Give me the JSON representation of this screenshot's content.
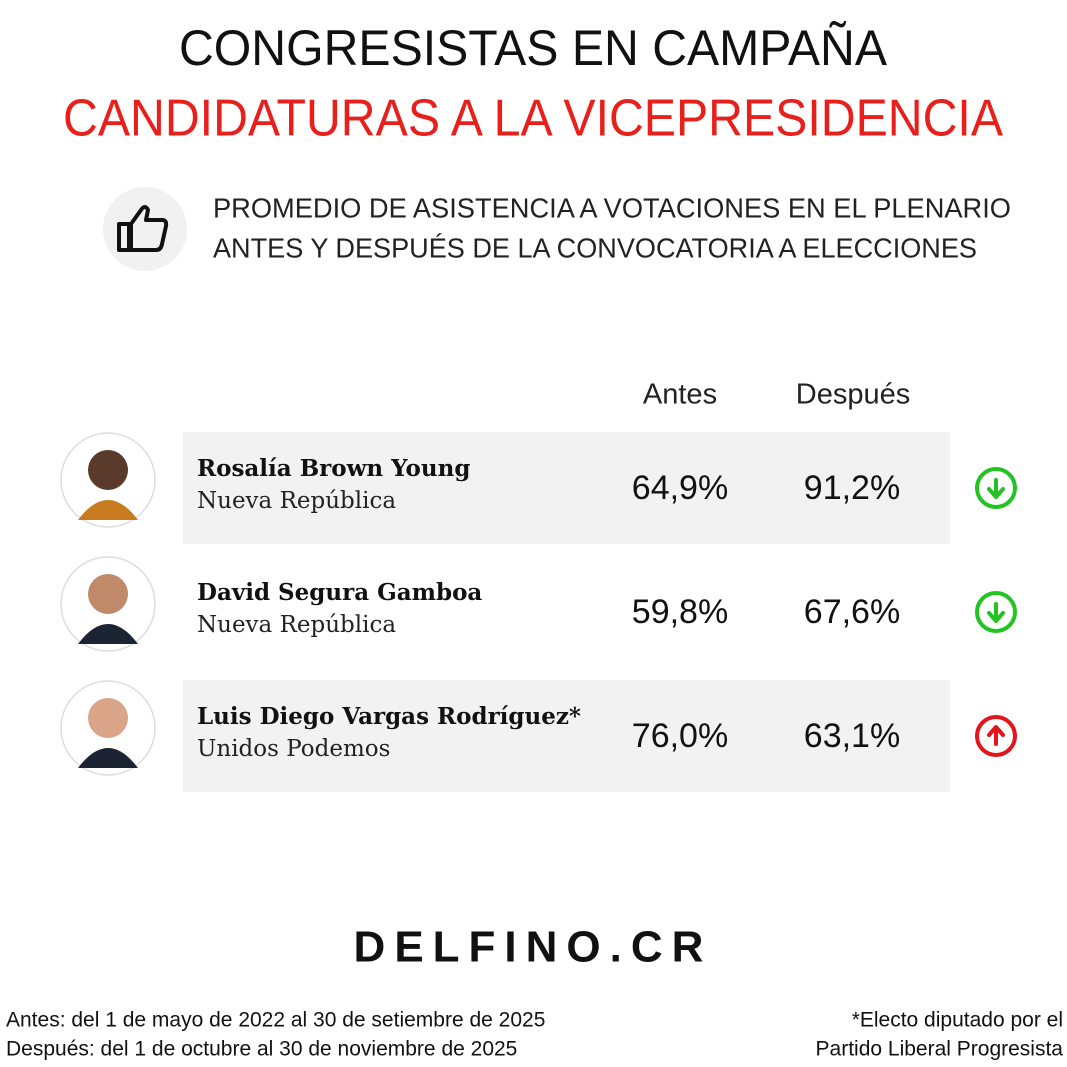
{
  "header": {
    "title": "CONGRESISTAS EN CAMPAÑA",
    "subtitle": "CANDIDATURAS A LA VICEPRESIDENCIA",
    "description": [
      "PROMEDIO DE ASISTENCIA A VOTACIONES EN EL PLENARIO",
      "ANTES Y DESPUÉS DE LA CONVOCATORIA A ELECCIONES"
    ]
  },
  "table": {
    "columns": [
      "Antes",
      "Después"
    ],
    "rows": [
      {
        "name": "Rosalía Brown Young",
        "party": "Nueva República",
        "antes": "64,9%",
        "despues": "91,2%"
      },
      {
        "name": "David Segura Gamboa",
        "party": "Nueva República",
        "antes": "59,8%",
        "despues": "67,6%"
      },
      {
        "name": "Luis Diego Vargas Rodríguez*",
        "party": "Unidos Podemos",
        "antes": "76,0%",
        "despues": "63,1%"
      }
    ]
  },
  "footer": {
    "brand": "DELFINO.CR",
    "notes_left": [
      "Antes: del 1 de mayo de 2022 al 30 de setiembre de 2025",
      "Después: del 1 de octubre al 30 de noviembre de 2025"
    ],
    "notes_right": [
      "*Electo diputado por el",
      "Partido Liberal Progresista"
    ]
  }
}
